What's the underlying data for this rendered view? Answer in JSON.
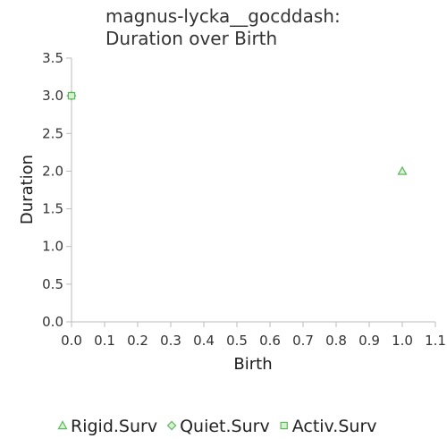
{
  "chart_data": {
    "type": "scatter",
    "title": [
      "magnus-lycka__gocddash:",
      "Duration over Birth"
    ],
    "xlabel": "Birth",
    "ylabel": "Duration",
    "xlim": [
      0.0,
      1.1
    ],
    "ylim": [
      0.0,
      3.5
    ],
    "xticks": [
      "0.0",
      "0.1",
      "0.2",
      "0.3",
      "0.4",
      "0.5",
      "0.6",
      "0.7",
      "0.8",
      "0.9",
      "1.0",
      "1.1"
    ],
    "yticks": [
      "0.0",
      "0.5",
      "1.0",
      "1.5",
      "2.0",
      "2.5",
      "3.0",
      "3.5"
    ],
    "grid": false,
    "legend_position": "bottom",
    "series": [
      {
        "name": "Rigid.Surv",
        "marker": "triangle",
        "color": "#5cb85c",
        "x": [
          1.0
        ],
        "y": [
          2.0
        ]
      },
      {
        "name": "Quiet.Surv",
        "marker": "diamond",
        "color": "#5cb85c",
        "x": [
          0.0
        ],
        "y": [
          3.0
        ]
      },
      {
        "name": "Activ.Surv",
        "marker": "square",
        "color": "#5cb85c",
        "x": [
          0.0
        ],
        "y": [
          3.0
        ]
      }
    ]
  }
}
